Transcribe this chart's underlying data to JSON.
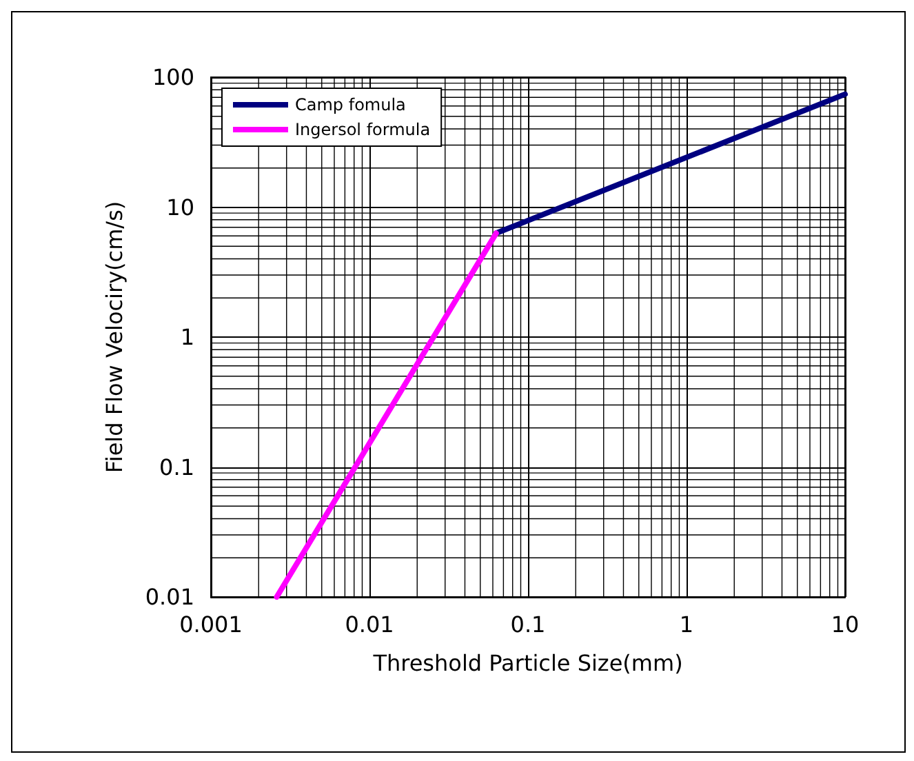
{
  "chart_data": {
    "type": "line",
    "xlabel": "Threshold Particle Size(mm)",
    "ylabel": "Field Flow Velociry(cm/s)",
    "log": "xy",
    "xlim": [
      0.001,
      10
    ],
    "ylim": [
      0.01,
      100
    ],
    "xticks": [
      0.001,
      0.01,
      0.1,
      1,
      10
    ],
    "yticks": [
      0.01,
      0.1,
      1,
      10,
      100
    ],
    "grid": true,
    "legend": "top left",
    "marker": "none",
    "line_style": "solid",
    "series": [
      {
        "name": "Camp fomula",
        "color": "#000080",
        "x": [
          0.063,
          10
        ],
        "values": [
          6.3,
          74
        ]
      },
      {
        "name": "Ingersol formula",
        "color": "#ff00ff",
        "x": [
          0.0026,
          0.063
        ],
        "values": [
          0.01,
          6.3
        ]
      }
    ]
  }
}
